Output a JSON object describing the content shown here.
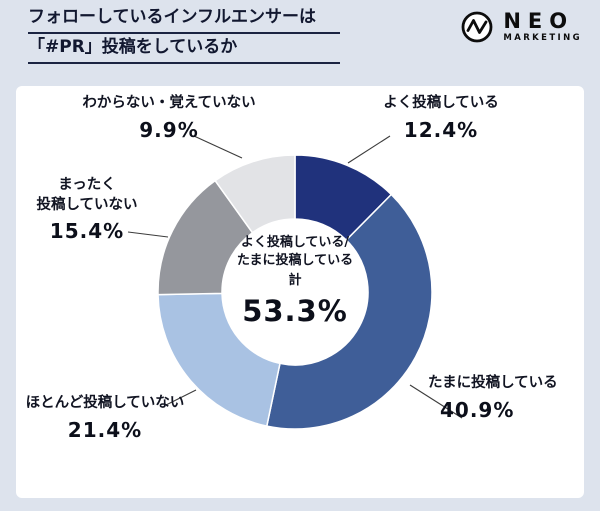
{
  "page": {
    "background": "#dde3ed",
    "panel_background": "#ffffff"
  },
  "header": {
    "title_line1": "フォローしているインフルエンサーは",
    "title_line2": "「#PR」投稿をしているか",
    "logo": {
      "name": "NEO",
      "sub": "MARKETING"
    }
  },
  "chart_data": {
    "type": "pie",
    "donut": true,
    "title": "フォローしているインフルエンサーは「#PR」投稿をしているか",
    "start_angle_deg": 0,
    "direction": "clockwise",
    "legend_position": "callout-labels",
    "segments": [
      {
        "label": "よく投稿している",
        "value": 12.4,
        "display": "12.4%",
        "color": "#20327c"
      },
      {
        "label": "たまに投稿している",
        "value": 40.9,
        "display": "40.9%",
        "color": "#3f5e98"
      },
      {
        "label": "ほとんど投稿していない",
        "value": 21.4,
        "display": "21.4%",
        "color": "#a9c2e3"
      },
      {
        "label": "まったく投稿していない",
        "value": 15.4,
        "display": "15.4%",
        "color": "#95979d",
        "label_lines": [
          "まったく",
          "投稿していない"
        ]
      },
      {
        "label": "わからない・覚えていない",
        "value": 9.9,
        "display": "9.9%",
        "color": "#e2e3e6"
      }
    ],
    "center_label": {
      "line1": "よく投稿している/",
      "line2": "たまに投稿している",
      "line3": "計",
      "value": "53.3%"
    }
  }
}
